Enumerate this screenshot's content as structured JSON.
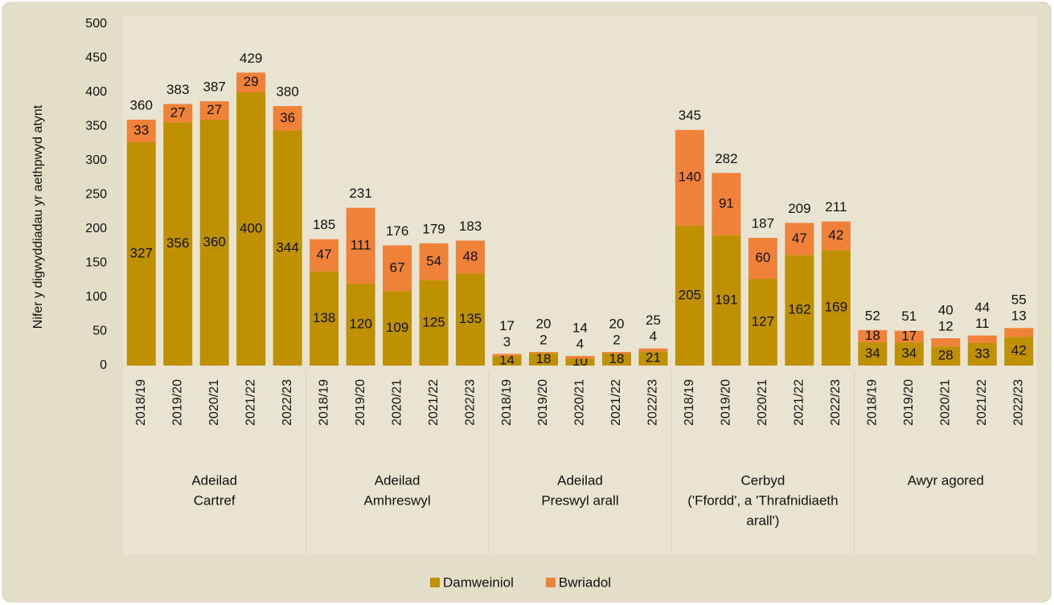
{
  "chart_data": {
    "type": "stacked-bar",
    "y_axis_label": "Nifer y digwyddiadau yr aethpwyd atynt",
    "ylim": [
      0,
      500
    ],
    "yticks": [
      0,
      50,
      100,
      150,
      200,
      250,
      300,
      350,
      400,
      450,
      500
    ],
    "groups": [
      {
        "label": [
          "Adeilad",
          "Cartref"
        ],
        "categories": [
          "2018/19",
          "2019/20",
          "2020/21",
          "2021/22",
          "2022/23"
        ]
      },
      {
        "label": [
          "Adeilad",
          "Amhreswyl"
        ],
        "categories": [
          "2018/19",
          "2019/20",
          "2020/21",
          "2021/22",
          "2022/23"
        ]
      },
      {
        "label": [
          "Adeilad",
          "Preswyl arall"
        ],
        "categories": [
          "2018/19",
          "2019/20",
          "2020/21",
          "2021/22",
          "2022/23"
        ]
      },
      {
        "label": [
          "Cerbyd",
          "('Ffordd', a 'Thrafnidiaeth",
          "arall')"
        ],
        "categories": [
          "2018/19",
          "2019/20",
          "2020/21",
          "2021/22",
          "2022/23"
        ]
      },
      {
        "label": [
          "Awyr agored"
        ],
        "categories": [
          "2018/19",
          "2019/20",
          "2020/21",
          "2021/22",
          "2022/23"
        ]
      }
    ],
    "series": [
      {
        "name": "Damweiniol",
        "color": "#bf9000",
        "values": [
          327,
          356,
          360,
          400,
          344,
          138,
          120,
          109,
          125,
          135,
          14,
          18,
          10,
          18,
          21,
          205,
          191,
          127,
          162,
          169,
          34,
          34,
          28,
          33,
          42
        ]
      },
      {
        "name": "Bwriadol",
        "color": "#ef8238",
        "values": [
          33,
          27,
          27,
          29,
          36,
          47,
          111,
          67,
          54,
          48,
          3,
          2,
          4,
          2,
          4,
          140,
          91,
          60,
          47,
          42,
          18,
          17,
          12,
          11,
          13
        ]
      }
    ],
    "totals": [
      360,
      383,
      387,
      429,
      380,
      185,
      231,
      176,
      179,
      183,
      17,
      20,
      14,
      20,
      25,
      345,
      282,
      187,
      209,
      211,
      52,
      51,
      40,
      44,
      55
    ],
    "legend": "bottom"
  }
}
